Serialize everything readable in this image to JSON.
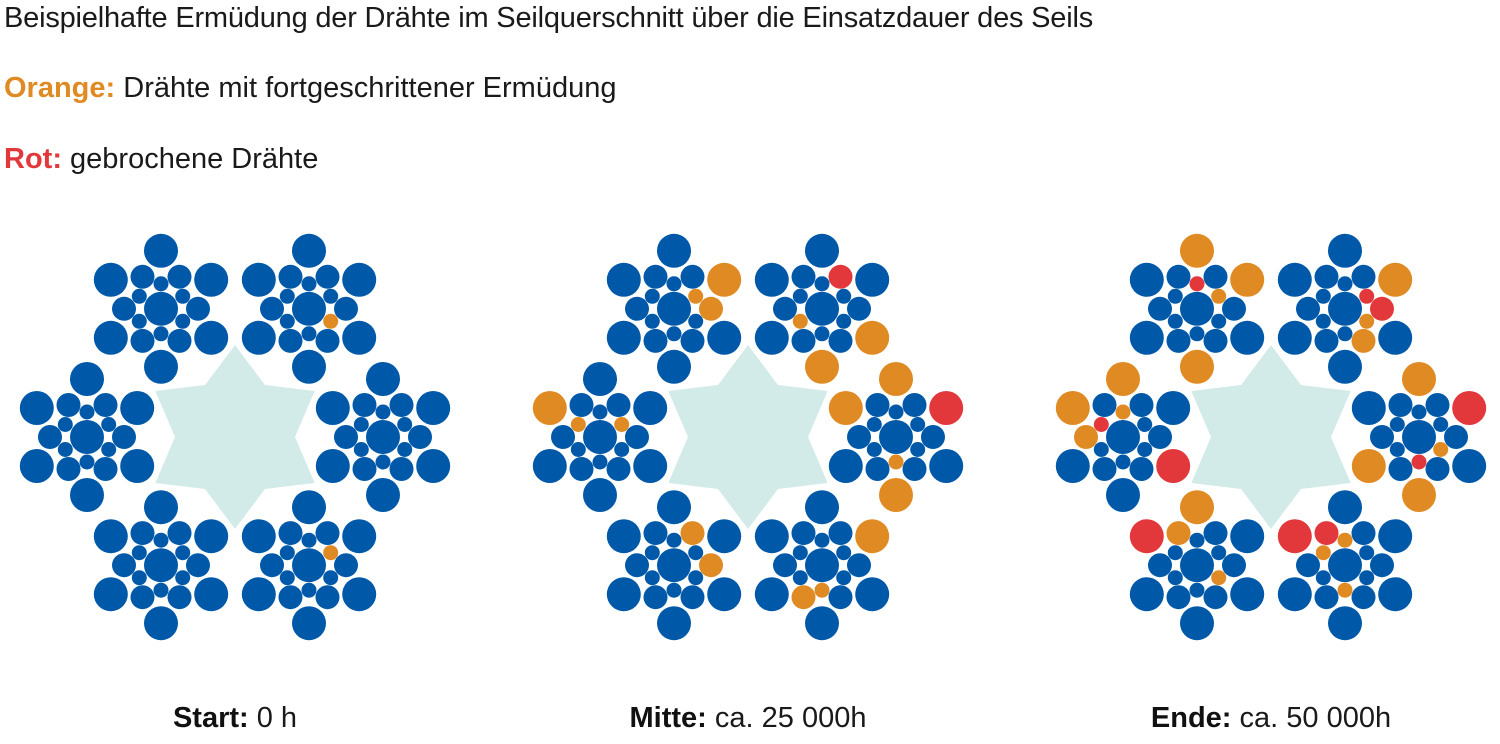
{
  "title": "Beispielhafte Ermüdung der Drähte im Seilquerschnitt über die Einsatzdauer des Seils",
  "legend": [
    {
      "key": "Orange:",
      "text": "Drähte mit fortgeschrittener Ermüdung",
      "color": "#E08A24"
    },
    {
      "key": "Rot:",
      "text": "gebrochene Drähte",
      "color": "#E2383B"
    }
  ],
  "colors": {
    "healthy": "#0059A8",
    "fatigued": "#E08A24",
    "broken": "#E2383B",
    "core": "#D3EBE8"
  },
  "panels": [
    {
      "key": "Start:",
      "value": "0 h",
      "strands": [
        {
          "orange": [],
          "red": []
        },
        {
          "orange": [
            4
          ],
          "red": []
        },
        {
          "orange": [],
          "red": []
        },
        {
          "orange": [],
          "red": []
        },
        {
          "orange": [],
          "red": []
        },
        {
          "orange": [
            13
          ],
          "red": []
        }
      ]
    },
    {
      "key": "Mitte:",
      "value": "ca. 25 000h",
      "strands": [
        {
          "orange": [
            1,
            4,
            9
          ],
          "red": []
        },
        {
          "orange": [
            1,
            5,
            10
          ],
          "red": [
            3
          ]
        },
        {
          "orange": [
            0,
            2,
            7
          ],
          "red": []
        },
        {
          "orange": [
            1,
            4,
            8,
            11
          ],
          "red": [
            14
          ]
        },
        {
          "orange": [
            12,
            15
          ],
          "red": []
        },
        {
          "orange": [
            2,
            6,
            11
          ],
          "red": []
        }
      ]
    },
    {
      "key": "Ende:",
      "value": "ca. 50 000h",
      "strands": [
        {
          "orange": [
            0,
            1,
            4,
            8
          ],
          "red": [
            2
          ]
        },
        {
          "orange": [
            0,
            4,
            9
          ],
          "red": [
            2,
            6
          ]
        },
        {
          "orange": [
            0,
            1,
            3,
            4
          ],
          "red": [
            2,
            8
          ]
        },
        {
          "orange": [
            1,
            2,
            5,
            11
          ],
          "red": [
            4,
            14
          ]
        },
        {
          "orange": [
            5,
            9,
            13
          ],
          "red": [
            1
          ]
        },
        {
          "orange": [
            2,
            7,
            10
          ],
          "red": [
            5,
            12
          ]
        }
      ]
    }
  ]
}
